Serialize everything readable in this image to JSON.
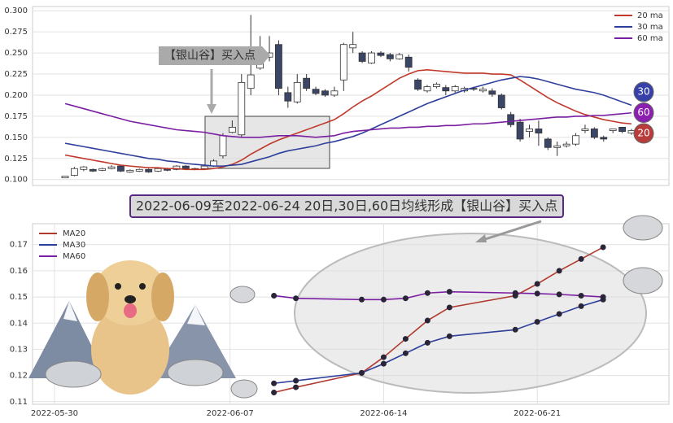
{
  "chart_data": [
    {
      "type": "candlestick",
      "open": [
        0.102,
        0.105,
        0.112,
        0.112,
        0.111,
        0.113,
        0.116,
        0.109,
        0.11,
        0.112,
        0.11,
        0.113,
        0.112,
        0.116,
        0.113,
        0.113,
        0.116,
        0.128,
        0.156,
        0.153,
        0.208,
        0.232,
        0.245,
        0.26,
        0.203,
        0.192,
        0.22,
        0.207,
        0.205,
        0.2,
        0.218,
        0.256,
        0.25,
        0.238,
        0.25,
        0.248,
        0.243,
        0.245,
        0.218,
        0.205,
        0.21,
        0.209,
        0.205,
        0.205,
        0.208,
        0.205,
        0.205,
        0.2,
        0.177,
        0.168,
        0.157,
        0.16,
        0.148,
        0.138,
        0.14,
        0.142,
        0.158,
        0.16,
        0.15,
        0.158,
        0.162,
        0.155
      ],
      "high": [
        0.104,
        0.115,
        0.116,
        0.113,
        0.114,
        0.117,
        0.117,
        0.112,
        0.113,
        0.113,
        0.114,
        0.114,
        0.117,
        0.117,
        0.114,
        0.118,
        0.124,
        0.155,
        0.17,
        0.225,
        0.295,
        0.27,
        0.27,
        0.265,
        0.21,
        0.225,
        0.225,
        0.21,
        0.207,
        0.21,
        0.262,
        0.275,
        0.252,
        0.252,
        0.252,
        0.25,
        0.25,
        0.248,
        0.22,
        0.212,
        0.215,
        0.212,
        0.212,
        0.21,
        0.21,
        0.21,
        0.208,
        0.202,
        0.18,
        0.172,
        0.165,
        0.17,
        0.15,
        0.145,
        0.145,
        0.155,
        0.165,
        0.162,
        0.152,
        0.16,
        0.162,
        0.16
      ],
      "low": [
        0.102,
        0.104,
        0.11,
        0.109,
        0.11,
        0.112,
        0.109,
        0.108,
        0.109,
        0.108,
        0.109,
        0.11,
        0.111,
        0.112,
        0.111,
        0.112,
        0.115,
        0.125,
        0.155,
        0.15,
        0.2,
        0.23,
        0.24,
        0.2,
        0.185,
        0.19,
        0.205,
        0.2,
        0.198,
        0.198,
        0.205,
        0.25,
        0.238,
        0.237,
        0.245,
        0.24,
        0.242,
        0.228,
        0.205,
        0.203,
        0.208,
        0.2,
        0.203,
        0.203,
        0.205,
        0.203,
        0.198,
        0.183,
        0.162,
        0.145,
        0.15,
        0.14,
        0.135,
        0.128,
        0.138,
        0.14,
        0.155,
        0.148,
        0.145,
        0.155,
        0.155,
        0.153
      ],
      "close": [
        0.104,
        0.113,
        0.115,
        0.11,
        0.113,
        0.115,
        0.11,
        0.111,
        0.112,
        0.109,
        0.113,
        0.111,
        0.116,
        0.113,
        0.112,
        0.116,
        0.122,
        0.152,
        0.162,
        0.215,
        0.224,
        0.243,
        0.25,
        0.208,
        0.193,
        0.215,
        0.208,
        0.202,
        0.2,
        0.205,
        0.26,
        0.26,
        0.24,
        0.25,
        0.247,
        0.243,
        0.248,
        0.233,
        0.207,
        0.21,
        0.213,
        0.205,
        0.21,
        0.208,
        0.207,
        0.207,
        0.201,
        0.185,
        0.165,
        0.148,
        0.16,
        0.155,
        0.138,
        0.14,
        0.142,
        0.152,
        0.16,
        0.15,
        0.148,
        0.16,
        0.157,
        0.158
      ],
      "up_color": "#ffffff",
      "down_color": "#3b4566",
      "ylim": [
        0.093,
        0.305
      ],
      "yticks": [
        {
          "value": 0.1,
          "label": "0.100"
        },
        {
          "value": 0.125,
          "label": "0.125"
        },
        {
          "value": 0.15,
          "label": "0.150"
        },
        {
          "value": 0.175,
          "label": "0.175"
        },
        {
          "value": 0.2,
          "label": "0.200"
        },
        {
          "value": 0.225,
          "label": "0.225"
        },
        {
          "value": 0.25,
          "label": "0.250"
        },
        {
          "value": 0.275,
          "label": "0.275"
        },
        {
          "value": 0.3,
          "label": "0.300"
        }
      ],
      "series": [
        {
          "name": "20 ma",
          "color": "#c0392b",
          "values": [
            0.129,
            0.127,
            0.125,
            0.123,
            0.121,
            0.119,
            0.117,
            0.116,
            0.115,
            0.114,
            0.114,
            0.113,
            0.113,
            0.112,
            0.112,
            0.112,
            0.113,
            0.115,
            0.118,
            0.123,
            0.13,
            0.136,
            0.142,
            0.147,
            0.151,
            0.155,
            0.159,
            0.163,
            0.167,
            0.171,
            0.178,
            0.186,
            0.193,
            0.199,
            0.206,
            0.213,
            0.22,
            0.225,
            0.229,
            0.23,
            0.229,
            0.228,
            0.227,
            0.226,
            0.226,
            0.226,
            0.225,
            0.225,
            0.224,
            0.218,
            0.211,
            0.204,
            0.197,
            0.191,
            0.186,
            0.181,
            0.177,
            0.174,
            0.171,
            0.169,
            0.167,
            0.166
          ]
        },
        {
          "name": "30 ma",
          "color": "#2e3f9a",
          "values": [
            0.143,
            0.141,
            0.139,
            0.137,
            0.135,
            0.133,
            0.131,
            0.129,
            0.127,
            0.125,
            0.124,
            0.122,
            0.121,
            0.119,
            0.118,
            0.117,
            0.116,
            0.116,
            0.117,
            0.118,
            0.121,
            0.124,
            0.127,
            0.131,
            0.134,
            0.136,
            0.138,
            0.14,
            0.143,
            0.145,
            0.148,
            0.151,
            0.155,
            0.16,
            0.165,
            0.17,
            0.175,
            0.18,
            0.185,
            0.19,
            0.194,
            0.198,
            0.202,
            0.206,
            0.209,
            0.212,
            0.215,
            0.218,
            0.22,
            0.222,
            0.221,
            0.219,
            0.216,
            0.213,
            0.21,
            0.207,
            0.205,
            0.203,
            0.2,
            0.196,
            0.192,
            0.188
          ]
        },
        {
          "name": "60 ma",
          "color": "#7b1fa2",
          "values": [
            0.19,
            0.187,
            0.184,
            0.181,
            0.178,
            0.175,
            0.172,
            0.169,
            0.167,
            0.165,
            0.163,
            0.161,
            0.159,
            0.158,
            0.157,
            0.156,
            0.154,
            0.152,
            0.151,
            0.15,
            0.15,
            0.15,
            0.151,
            0.152,
            0.152,
            0.152,
            0.151,
            0.15,
            0.151,
            0.152,
            0.155,
            0.157,
            0.158,
            0.159,
            0.16,
            0.161,
            0.161,
            0.162,
            0.162,
            0.163,
            0.163,
            0.164,
            0.164,
            0.165,
            0.166,
            0.166,
            0.167,
            0.168,
            0.169,
            0.17,
            0.171,
            0.172,
            0.173,
            0.174,
            0.174,
            0.175,
            0.175,
            0.176,
            0.176,
            0.177,
            0.178,
            0.179
          ]
        }
      ],
      "badges": [
        {
          "text": "30",
          "color": "#3640a8"
        },
        {
          "text": "60",
          "color": "#8a1fb0"
        },
        {
          "text": "20",
          "color": "#b83c3c"
        }
      ],
      "annotation": "【银山谷】买入点",
      "legend": "upper right",
      "grid": true
    },
    {
      "type": "line",
      "title": "2022-06-09至2022-06-24 20日,30日,60日均线形成【银山谷】买入点",
      "x": [
        "2022-06-09",
        "2022-06-10",
        "2022-06-13",
        "2022-06-14",
        "2022-06-15",
        "2022-06-16",
        "2022-06-17",
        "2022-06-20",
        "2022-06-21",
        "2022-06-22",
        "2022-06-23",
        "2022-06-24"
      ],
      "xlim": [
        "2022-05-29",
        "2022-06-27"
      ],
      "xticks": [
        "2022-05-30",
        "2022-06-07",
        "2022-06-14",
        "2022-06-21"
      ],
      "ylim": [
        0.109,
        0.178
      ],
      "yticks": [
        0.11,
        0.12,
        0.13,
        0.14,
        0.15,
        0.16,
        0.17
      ],
      "series": [
        {
          "name": "MA20",
          "color": "#b03a2e",
          "values": [
            0.1135,
            0.1155,
            0.121,
            0.127,
            0.134,
            0.141,
            0.146,
            0.1505,
            0.155,
            0.16,
            0.1645,
            0.169
          ]
        },
        {
          "name": "MA30",
          "color": "#2e3f9a",
          "values": [
            0.117,
            0.118,
            0.121,
            0.1245,
            0.1285,
            0.1325,
            0.135,
            0.1375,
            0.1405,
            0.1435,
            0.1465,
            0.149
          ]
        },
        {
          "name": "MA60",
          "color": "#7b1fa2",
          "values": [
            0.1505,
            0.1495,
            0.149,
            0.149,
            0.1495,
            0.1515,
            0.152,
            0.1515,
            0.1513,
            0.151,
            0.1505,
            0.15
          ]
        }
      ],
      "legend": "upper left",
      "grid": true
    }
  ]
}
